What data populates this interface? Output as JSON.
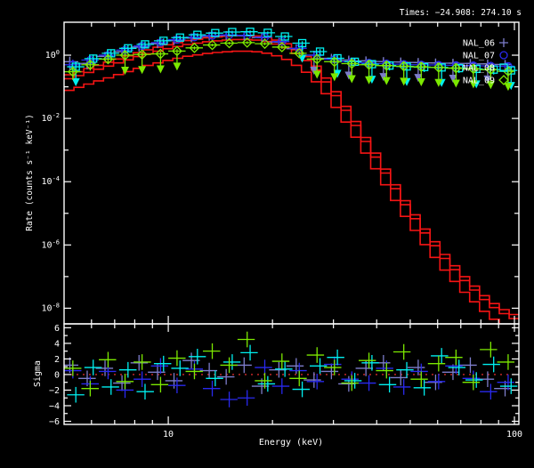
{
  "header": {
    "times_label": "Times: −24.908: 274.10 s"
  },
  "legend": {
    "items": [
      {
        "label": "NAL_06",
        "marker": "plus",
        "color": "#7d7dcb"
      },
      {
        "label": "NAL_07",
        "marker": "circle",
        "color": "#2929ee"
      },
      {
        "label": "NAL_08",
        "marker": "square",
        "color": "#00f0f0"
      },
      {
        "label": "NAL_09",
        "marker": "diamond",
        "color": "#7ce800"
      }
    ]
  },
  "colors": {
    "background": "#000000",
    "frame": "#ffffff",
    "model": "#f51414",
    "zero_line": "#ff3333"
  },
  "chart_data": {
    "type": "scatter",
    "title": "",
    "xlabel": "Energy (keV)",
    "ylabel_main": "Rate (counts s⁻¹ keV⁻¹)",
    "ylabel_resid": "Sigma",
    "x_scale": "log",
    "y_scale_main": "log",
    "xlim": [
      5,
      103
    ],
    "ylim_main": [
      3.2e-09,
      11
    ],
    "ylim_resid": [
      -6.4,
      6.5
    ],
    "x_tick_labels": [
      "10",
      "100"
    ],
    "x_major_ticks": [
      10,
      100
    ],
    "x_minor_ticks": [
      6,
      7,
      8,
      9,
      20,
      30,
      40,
      50,
      60,
      70,
      80,
      90
    ],
    "y_tick_exponents": [
      0,
      -2,
      -4,
      -6,
      -8
    ],
    "y_decade_ticks": [
      0,
      -1,
      -2,
      -3,
      -4,
      -5,
      -6,
      -7,
      -8
    ],
    "sigma_major_ticks": [
      6,
      4,
      2,
      0,
      -2,
      -4,
      -6
    ],
    "sigma_minor_ticks": [
      5,
      3,
      1,
      -1,
      -3,
      -5
    ],
    "zero_line": 0,
    "legend_position": "top-right",
    "grid": false,
    "energies": [
      5.3,
      5.95,
      6.7,
      7.5,
      8.4,
      9.5,
      10.6,
      11.9,
      13.4,
      15.0,
      16.9,
      19.0,
      21.3,
      23.9,
      26.9,
      30.2,
      33.9,
      38.0,
      42.7,
      47.9,
      53.8,
      60.4,
      67.8,
      76.1,
      85.4,
      95.9
    ],
    "bin_edges": [
      5.0,
      5.61,
      6.3,
      7.07,
      7.94,
      8.91,
      10.0,
      11.22,
      12.59,
      14.13,
      15.85,
      17.78,
      19.95,
      22.39,
      25.12,
      28.18,
      31.62,
      35.48,
      39.81,
      44.67,
      50.12,
      56.23,
      63.1,
      70.79,
      79.43,
      89.13,
      100.0
    ],
    "err_frac": [
      0.45,
      0.35,
      0.3,
      0.25,
      0.22,
      0.18,
      0.15,
      0.12,
      0.1,
      0.1,
      0.1,
      0.1,
      0.12,
      0.15,
      0.2,
      0.25,
      0.28,
      0.3,
      0.3,
      0.3,
      0.3,
      0.3,
      0.3,
      0.3,
      0.3,
      0.32
    ],
    "datasets": [
      {
        "name": "NAL_06",
        "marker": "plus",
        "color": "#7d7dcb",
        "x_factor": 0.98,
        "rates": [
          0.62,
          0.55,
          0.92,
          1.3,
          1.8,
          2.3,
          2.9,
          3.5,
          3.95,
          4.2,
          4.1,
          3.6,
          2.6,
          1.6,
          1.0,
          0.8,
          0.7,
          0.66,
          0.63,
          0.61,
          0.59,
          0.57,
          0.56,
          0.55,
          0.53,
          0.51
        ],
        "upper_limit_indices": [
          14,
          16,
          18,
          20,
          22,
          24
        ],
        "sigma": [
          1.2,
          -0.5,
          0.8,
          -1.1,
          1.5,
          0.3,
          -0.8,
          1.8,
          0.5,
          -0.3,
          1.2,
          -1.5,
          0.6,
          1.1,
          -0.7,
          0.4,
          -1.2,
          0.8,
          1.5,
          -0.4,
          0.9,
          -1.0,
          0.3,
          1.2,
          -0.6,
          -1.8
        ]
      },
      {
        "name": "NAL_07",
        "marker": "circle",
        "color": "#2929ee",
        "x_factor": 1.0,
        "rates": [
          0.5,
          0.7,
          1.0,
          1.45,
          1.95,
          2.5,
          3.1,
          3.7,
          4.15,
          4.35,
          4.25,
          3.7,
          2.7,
          1.65,
          1.0,
          0.74,
          0.62,
          0.57,
          0.54,
          0.52,
          0.5,
          0.49,
          0.48,
          0.47,
          0.46,
          0.45
        ],
        "upper_limit_indices": [],
        "sigma": [
          0.5,
          -1.2,
          0.4,
          -2.0,
          -0.6,
          1.1,
          -1.4,
          0.7,
          -1.8,
          -3.2,
          -3.0,
          0.9,
          -1.5,
          0.5,
          -0.9,
          1.3,
          -0.6,
          -1.1,
          0.8,
          -1.6,
          0.4,
          -0.9,
          1.1,
          -0.5,
          -2.2,
          -1.0
        ]
      },
      {
        "name": "NAL_08",
        "marker": "square",
        "color": "#00f0f0",
        "x_factor": 1.02,
        "rates": [
          0.43,
          0.78,
          1.15,
          1.65,
          2.2,
          2.85,
          3.6,
          4.4,
          5.0,
          5.4,
          5.5,
          5.1,
          3.9,
          2.4,
          1.3,
          0.8,
          0.62,
          0.52,
          0.47,
          0.44,
          0.42,
          0.41,
          0.39,
          0.37,
          0.35,
          0.33
        ],
        "upper_limit_indices": [
          0,
          13,
          15,
          17,
          19,
          21,
          23,
          25
        ],
        "sigma": [
          -2.6,
          0.9,
          -1.6,
          0.6,
          -2.2,
          1.4,
          0.8,
          2.3,
          -0.5,
          1.6,
          2.8,
          -1.2,
          0.7,
          -1.9,
          1.1,
          2.2,
          -0.8,
          1.5,
          -1.3,
          0.6,
          -1.7,
          2.4,
          0.9,
          -0.7,
          1.3,
          -1.5
        ]
      },
      {
        "name": "NAL_09",
        "marker": "diamond",
        "color": "#7ce800",
        "x_factor": 1.0,
        "rates": [
          0.3,
          0.5,
          0.75,
          1.0,
          1.05,
          1.1,
          1.35,
          1.7,
          2.1,
          2.4,
          2.5,
          2.3,
          1.8,
          1.15,
          0.75,
          0.62,
          0.54,
          0.5,
          0.47,
          0.45,
          0.43,
          0.41,
          0.39,
          0.37,
          0.35,
          0.31
        ],
        "upper_limit_indices": [
          3,
          4,
          5,
          6,
          14,
          15,
          16,
          17,
          18,
          19,
          20,
          21,
          22,
          23,
          24,
          25
        ],
        "sigma": [
          0.8,
          -1.8,
          1.9,
          -0.9,
          1.6,
          -1.3,
          2.1,
          0.4,
          3.0,
          1.2,
          4.5,
          -0.8,
          1.7,
          -0.5,
          2.5,
          0.9,
          -1.1,
          1.8,
          0.5,
          2.9,
          -0.6,
          1.4,
          2.2,
          -1.0,
          3.2,
          1.6
        ]
      }
    ],
    "model": {
      "color": "#f51414",
      "scales": [
        1.0,
        0.75,
        0.32
      ],
      "edges": [
        5.0,
        5.34,
        5.7,
        6.09,
        6.5,
        6.95,
        7.42,
        7.92,
        8.46,
        9.04,
        9.65,
        10.31,
        11.01,
        11.76,
        12.56,
        13.41,
        14.32,
        15.3,
        16.34,
        17.45,
        18.64,
        19.9,
        21.26,
        22.7,
        24.25,
        25.9,
        27.66,
        29.54,
        31.55,
        33.7,
        35.99,
        38.44,
        41.06,
        43.85,
        46.83,
        50.02,
        53.42,
        57.06,
        60.94,
        65.08,
        69.51,
        74.24,
        79.29,
        84.68,
        90.44,
        96.59,
        103.16
      ],
      "values": [
        0.24,
        0.3,
        0.38,
        0.48,
        0.6,
        0.76,
        0.95,
        1.2,
        1.48,
        1.78,
        2.14,
        2.5,
        2.9,
        3.2,
        3.55,
        3.8,
        4.0,
        4.17,
        4.17,
        4.0,
        3.6,
        3.0,
        2.3,
        1.5,
        0.9,
        0.45,
        0.19,
        0.07,
        0.024,
        0.008,
        0.0025,
        0.0008,
        0.00025,
        8e-05,
        2.5e-05,
        9e-06,
        3.2e-06,
        1.26e-06,
        5e-07,
        2.2e-07,
        1e-07,
        5e-08,
        2.5e-08,
        1.4e-08,
        9e-09,
        6.3e-09
      ]
    }
  }
}
